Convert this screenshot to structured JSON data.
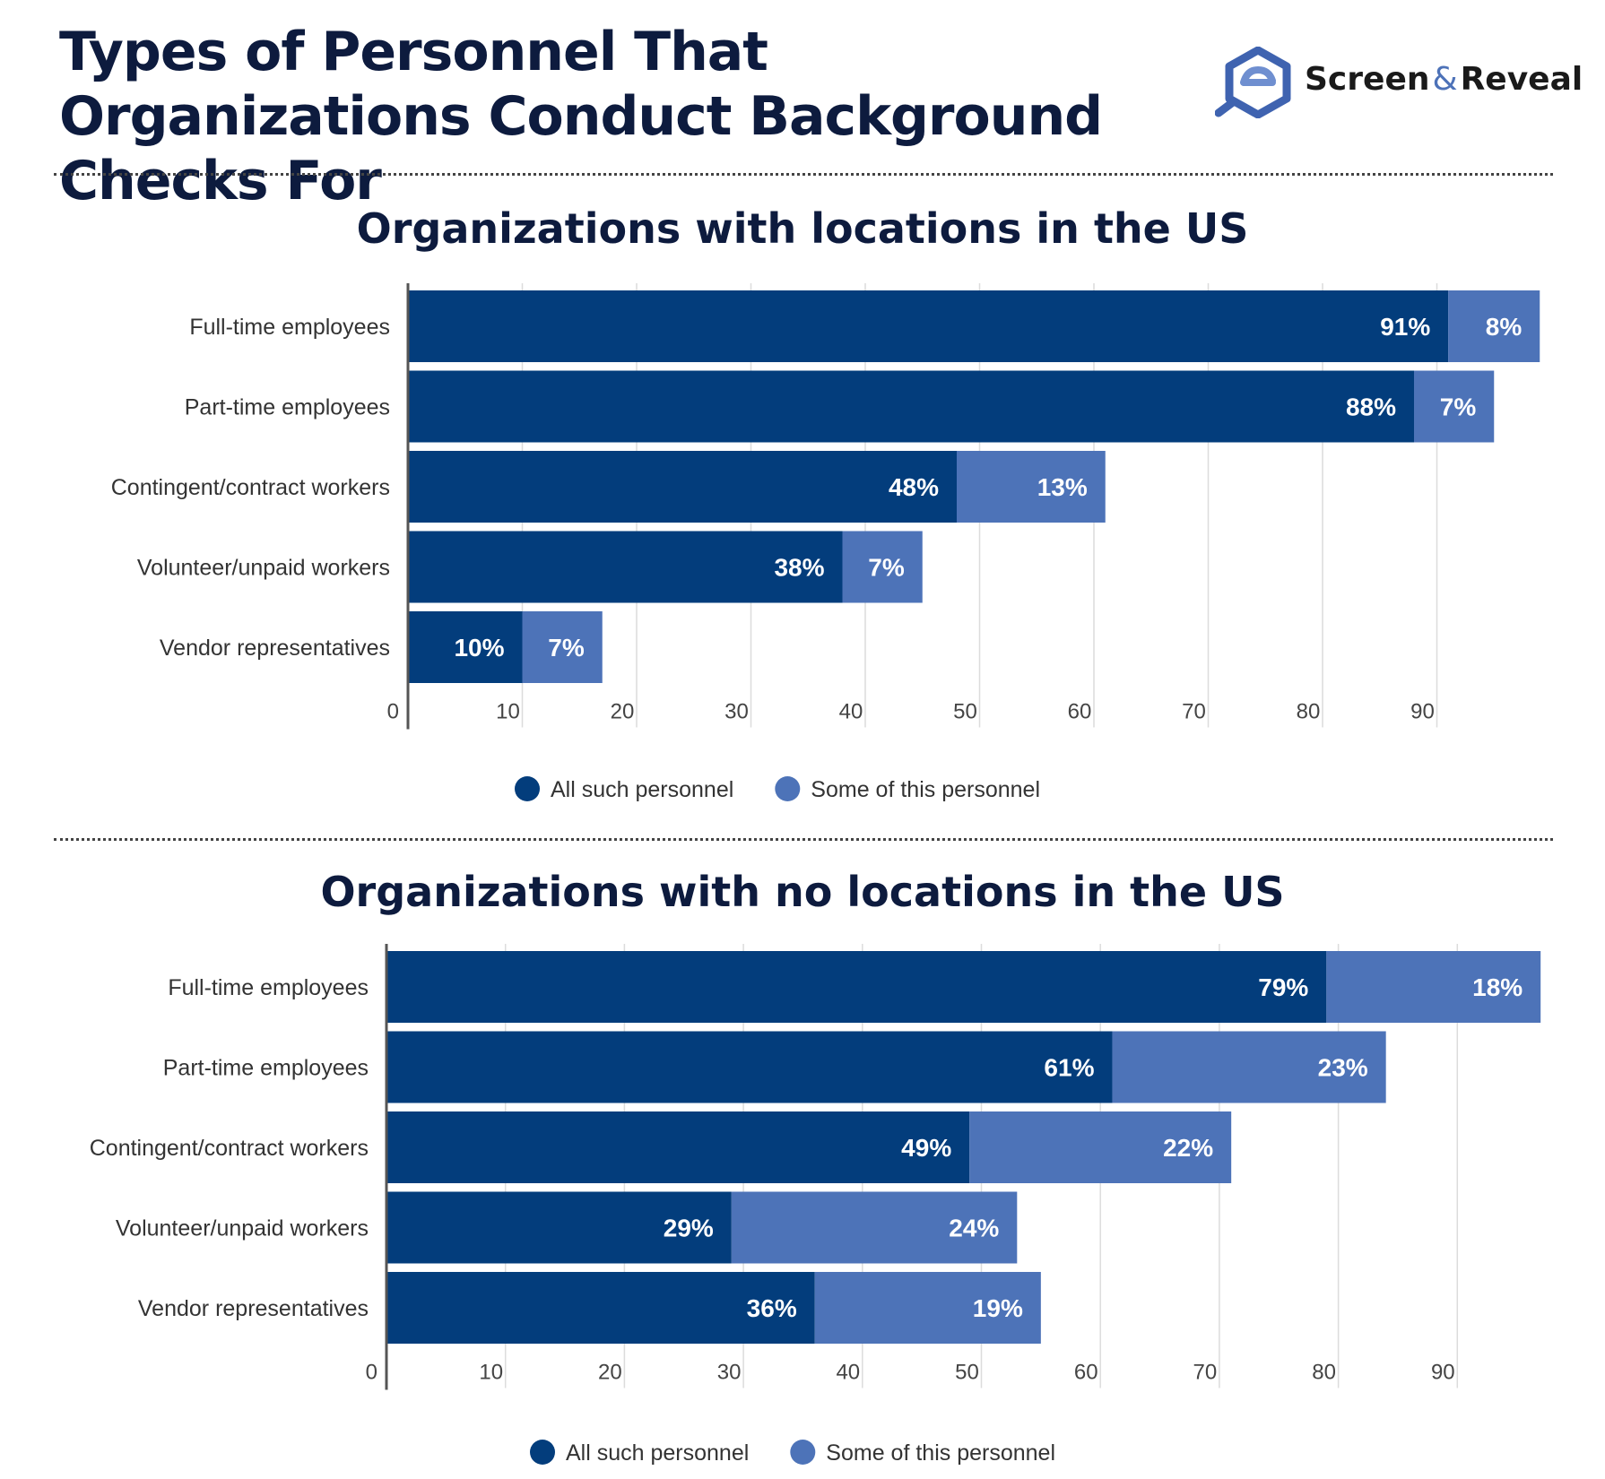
{
  "title": "Types of Personnel That Organizations Conduct Background Checks For",
  "logo": {
    "brand_left": "Screen",
    "brand_amp": "&",
    "brand_right": "Reveal",
    "icon": "magnifier-logo-icon"
  },
  "colors": {
    "all": "#033d7c",
    "some": "#4d73b8",
    "title": "#0d1b3e"
  },
  "chart_data": [
    {
      "type": "bar",
      "orientation": "horizontal",
      "stacked": true,
      "title": "Organizations with locations in the US",
      "categories": [
        "Full-time employees",
        "Part-time employees",
        "Contingent/contract workers",
        "Volunteer/unpaid workers",
        "Vendor representatives"
      ],
      "series": [
        {
          "name": "All such personnel",
          "values": [
            91,
            88,
            48,
            38,
            10
          ]
        },
        {
          "name": "Some of this personnel",
          "values": [
            8,
            7,
            13,
            7,
            7
          ]
        }
      ],
      "data_labels": [
        [
          "91%",
          "88%",
          "48%",
          "38%",
          "10%"
        ],
        [
          "8%",
          "7%",
          "13%",
          "7%",
          "7%"
        ]
      ],
      "xticks": [
        0,
        10,
        20,
        30,
        40,
        50,
        60,
        70,
        80,
        90
      ],
      "xlim": [
        0,
        99
      ],
      "grid": true,
      "legend": "bottom-center"
    },
    {
      "type": "bar",
      "orientation": "horizontal",
      "stacked": true,
      "title": "Organizations with no locations in the US",
      "categories": [
        "Full-time employees",
        "Part-time employees",
        "Contingent/contract workers",
        "Volunteer/unpaid workers",
        "Vendor representatives"
      ],
      "series": [
        {
          "name": "All such personnel",
          "values": [
            79,
            61,
            49,
            29,
            36
          ]
        },
        {
          "name": "Some of this personnel",
          "values": [
            18,
            23,
            22,
            24,
            19
          ]
        }
      ],
      "data_labels": [
        [
          "79%",
          "61%",
          "49%",
          "29%",
          "36%"
        ],
        [
          "18%",
          "23%",
          "22%",
          "24%",
          "19%"
        ]
      ],
      "xticks": [
        0,
        10,
        20,
        30,
        40,
        50,
        60,
        70,
        80,
        90
      ],
      "xlim": [
        0,
        97
      ],
      "grid": true,
      "legend": "bottom-center"
    }
  ]
}
